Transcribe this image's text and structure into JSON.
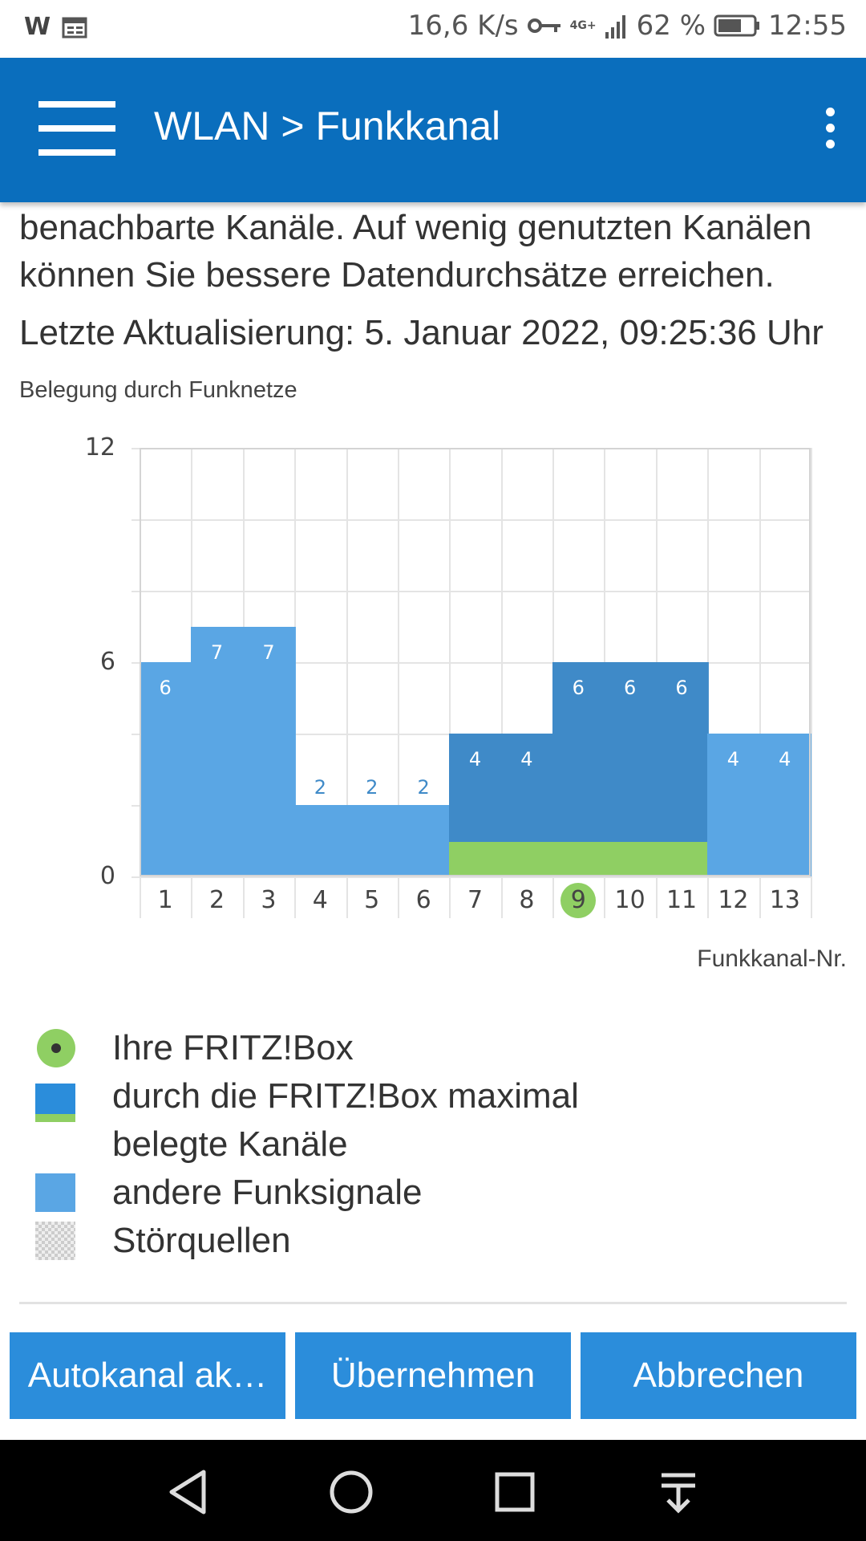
{
  "status_bar": {
    "left_icons": [
      "w-icon",
      "calendar-icon"
    ],
    "w_label": "W",
    "speed": "16,6 K/s",
    "network": "4G+",
    "battery": "62 %",
    "time": "12:55"
  },
  "app_bar": {
    "title": "WLAN > Funkkanal"
  },
  "content": {
    "intro_line1": "benachbarte Kanäle. Auf wenig genutzten Kanälen",
    "intro_line2": "können Sie bessere Datendurchsätze erreichen.",
    "last_update": "Letzte Aktualisierung: 5. Januar 2022, 09:25:36 Uhr",
    "chart_label": "Belegung durch Funknetze"
  },
  "chart_data": {
    "type": "bar",
    "title": "Belegung durch Funknetze",
    "xlabel": "Funkkanal-Nr.",
    "ylabel": "",
    "ylim": [
      0,
      12
    ],
    "yticks": [
      "0",
      "6",
      "12"
    ],
    "categories": [
      "1",
      "2",
      "3",
      "4",
      "5",
      "6",
      "7",
      "8",
      "9",
      "10",
      "11",
      "12",
      "13"
    ],
    "values": [
      6,
      7,
      7,
      2,
      2,
      2,
      4,
      4,
      6,
      6,
      6,
      4,
      4
    ],
    "own_channels": [
      7,
      8,
      9,
      10,
      11
    ],
    "current_channel": 9,
    "series": [
      {
        "name": "andere Funksignale",
        "channels": [
          "1",
          "2",
          "3",
          "4",
          "5",
          "6",
          "12",
          "13"
        ]
      },
      {
        "name": "durch die FRITZ!Box maximal belegte Kanäle",
        "channels": [
          "7",
          "8",
          "9",
          "10",
          "11"
        ]
      }
    ]
  },
  "legend": {
    "items": [
      {
        "label": "Ihre FRITZ!Box"
      },
      {
        "label": "durch die FRITZ!Box maximal"
      },
      {
        "label": "belegte Kanäle"
      },
      {
        "label": "andere Funksignale"
      },
      {
        "label": "Störquellen"
      }
    ]
  },
  "buttons": {
    "auto": "Autokanal ak…",
    "apply": "Übernehmen",
    "cancel": "Abbrechen"
  },
  "colors": {
    "appbar": "#0a6ebd",
    "bar_other": "#5aa6e4",
    "bar_own": "#3f8ac8",
    "own_base": "#8fcf63",
    "button": "#2b8ddb"
  }
}
